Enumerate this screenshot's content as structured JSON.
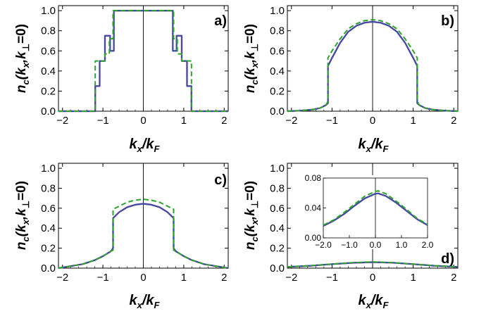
{
  "chart_data": [
    {
      "id": "a",
      "type": "line",
      "panel_label": "a)",
      "xlabel": {
        "main": "k",
        "sub1": "x",
        "mid": "/k",
        "sub2": "F"
      },
      "ylabel": {
        "main": "n",
        "sub1": "c",
        "mid1": "(k",
        "sub2": "x",
        "mid2": ",k",
        "sub3": "⊥",
        "end": "=0)"
      },
      "xlim": [
        -2.1,
        2.1
      ],
      "ylim": [
        0,
        1.05
      ],
      "xticks": [
        "−2",
        "−1",
        "0",
        "1",
        "2"
      ],
      "xtick_values": [
        -2,
        -1,
        0,
        1,
        2
      ],
      "yticks": [
        "0.0",
        "0.2",
        "0.4",
        "0.6",
        "0.8",
        "1.0"
      ],
      "ytick_values": [
        0,
        0.2,
        0.4,
        0.6,
        0.8,
        1.0
      ],
      "series": [
        {
          "color": "#cc1f5a",
          "dash": false,
          "x": [
            -2.1,
            -1.19,
            -1.19,
            -1.08,
            -1.08,
            -0.95,
            -0.95,
            -0.82,
            -0.82,
            -0.73,
            -0.73,
            0.73,
            0.73,
            0.82,
            0.82,
            0.95,
            0.95,
            1.08,
            1.08,
            1.19,
            1.19,
            2.1
          ],
          "y": [
            0,
            0,
            0.25,
            0.25,
            0.5,
            0.5,
            0.75,
            0.75,
            0.6,
            0.6,
            1.0,
            1.0,
            0.6,
            0.6,
            0.75,
            0.75,
            0.5,
            0.5,
            0.25,
            0.25,
            0,
            0
          ]
        },
        {
          "color": "#3f4ba8",
          "dash": false,
          "x": [
            -2.1,
            -1.19,
            -1.19,
            -1.08,
            -1.08,
            -0.95,
            -0.95,
            -0.82,
            -0.82,
            -0.73,
            -0.73,
            0.73,
            0.73,
            0.82,
            0.82,
            0.95,
            0.95,
            1.08,
            1.08,
            1.19,
            1.19,
            2.1
          ],
          "y": [
            0,
            0,
            0.25,
            0.25,
            0.5,
            0.5,
            0.75,
            0.75,
            0.6,
            0.6,
            1.0,
            1.0,
            0.6,
            0.6,
            0.75,
            0.75,
            0.5,
            0.5,
            0.25,
            0.25,
            0,
            0
          ]
        },
        {
          "color": "#2aa52a",
          "dash": true,
          "x": [
            -2.1,
            -1.19,
            -1.19,
            -0.95,
            -0.95,
            -0.84,
            -0.84,
            -0.75,
            -0.75,
            0.75,
            0.75,
            0.84,
            0.84,
            0.95,
            0.95,
            1.19,
            1.19,
            2.1
          ],
          "y": [
            0,
            0,
            0.5,
            0.5,
            0.57,
            0.57,
            0.72,
            0.72,
            1.0,
            1.0,
            0.72,
            0.72,
            0.57,
            0.57,
            0.5,
            0.5,
            0,
            0
          ]
        }
      ]
    },
    {
      "id": "b",
      "type": "line",
      "panel_label": "b)",
      "xlabel": {
        "main": "k",
        "sub1": "x",
        "mid": "/k",
        "sub2": "F"
      },
      "ylabel": {
        "main": "n",
        "sub1": "c",
        "mid1": "(k",
        "sub2": "x",
        "mid2": ",k",
        "sub3": "⊥",
        "end": "=0)"
      },
      "xlim": [
        -2.1,
        2.1
      ],
      "ylim": [
        0,
        1.05
      ],
      "xticks": [
        "−2",
        "−1",
        "0",
        "1",
        "2"
      ],
      "xtick_values": [
        -2,
        -1,
        0,
        1,
        2
      ],
      "yticks": [
        "0.0",
        "0.2",
        "0.4",
        "0.6",
        "0.8",
        "1.0"
      ],
      "ytick_values": [
        0,
        0.2,
        0.4,
        0.6,
        0.8,
        1.0
      ],
      "series": [
        {
          "color": "#cc1f5a",
          "dash": false,
          "x": [
            -2.1,
            -1.8,
            -1.5,
            -1.3,
            -1.15,
            -1.1,
            -1.1,
            -1.0,
            -0.8,
            -0.6,
            -0.4,
            -0.2,
            0,
            0.2,
            0.4,
            0.6,
            0.8,
            1.0,
            1.1,
            1.1,
            1.15,
            1.3,
            1.5,
            1.8,
            2.1
          ],
          "y": [
            0,
            0.005,
            0.015,
            0.03,
            0.06,
            0.08,
            0.45,
            0.53,
            0.68,
            0.79,
            0.85,
            0.88,
            0.89,
            0.88,
            0.85,
            0.79,
            0.68,
            0.53,
            0.45,
            0.08,
            0.06,
            0.03,
            0.015,
            0.005,
            0
          ]
        },
        {
          "color": "#3f4ba8",
          "dash": false,
          "x": [
            -2.1,
            -1.8,
            -1.5,
            -1.3,
            -1.15,
            -1.1,
            -1.1,
            -1.0,
            -0.8,
            -0.6,
            -0.4,
            -0.2,
            0,
            0.2,
            0.4,
            0.6,
            0.8,
            1.0,
            1.1,
            1.1,
            1.15,
            1.3,
            1.5,
            1.8,
            2.1
          ],
          "y": [
            0,
            0.005,
            0.015,
            0.03,
            0.06,
            0.08,
            0.45,
            0.53,
            0.68,
            0.79,
            0.85,
            0.88,
            0.89,
            0.88,
            0.85,
            0.79,
            0.68,
            0.53,
            0.45,
            0.08,
            0.06,
            0.03,
            0.015,
            0.005,
            0
          ]
        },
        {
          "color": "#2aa52a",
          "dash": true,
          "x": [
            -2.1,
            -1.8,
            -1.5,
            -1.3,
            -1.15,
            -1.1,
            -1.1,
            -1.0,
            -0.8,
            -0.6,
            -0.4,
            -0.2,
            0,
            0.2,
            0.4,
            0.6,
            0.8,
            1.0,
            1.1,
            1.1,
            1.15,
            1.3,
            1.5,
            1.8,
            2.1
          ],
          "y": [
            0,
            0.005,
            0.015,
            0.03,
            0.06,
            0.1,
            0.53,
            0.6,
            0.72,
            0.82,
            0.87,
            0.9,
            0.91,
            0.9,
            0.87,
            0.82,
            0.72,
            0.6,
            0.53,
            0.1,
            0.06,
            0.03,
            0.015,
            0.005,
            0
          ]
        }
      ]
    },
    {
      "id": "c",
      "type": "line",
      "panel_label": "c)",
      "xlabel": {
        "main": "k",
        "sub1": "x",
        "mid": "/k",
        "sub2": "F"
      },
      "ylabel": {
        "main": "n",
        "sub1": "c",
        "mid1": "(k",
        "sub2": "x",
        "mid2": ",k",
        "sub3": "⊥",
        "end": "=0)"
      },
      "xlim": [
        -2.1,
        2.1
      ],
      "ylim": [
        0,
        1.05
      ],
      "xticks": [
        "−2",
        "−1",
        "0",
        "1",
        "2"
      ],
      "xtick_values": [
        -2,
        -1,
        0,
        1,
        2
      ],
      "yticks": [
        "0.0",
        "0.2",
        "0.4",
        "0.6",
        "0.8",
        "1.0"
      ],
      "ytick_values": [
        0,
        0.2,
        0.4,
        0.6,
        0.8,
        1.0
      ],
      "series": [
        {
          "color": "#cc1f5a",
          "dash": false,
          "x": [
            -2.1,
            -1.8,
            -1.5,
            -1.2,
            -1.0,
            -0.8,
            -0.75,
            -0.75,
            -0.6,
            -0.4,
            -0.2,
            0,
            0.2,
            0.4,
            0.6,
            0.75,
            0.75,
            0.8,
            1.0,
            1.2,
            1.5,
            1.8,
            2.1
          ],
          "y": [
            0,
            0.02,
            0.04,
            0.08,
            0.12,
            0.17,
            0.2,
            0.5,
            0.56,
            0.61,
            0.635,
            0.645,
            0.635,
            0.61,
            0.56,
            0.5,
            0.2,
            0.17,
            0.12,
            0.08,
            0.04,
            0.02,
            0
          ]
        },
        {
          "color": "#3f4ba8",
          "dash": false,
          "x": [
            -2.1,
            -1.8,
            -1.5,
            -1.2,
            -1.0,
            -0.8,
            -0.75,
            -0.75,
            -0.6,
            -0.4,
            -0.2,
            0,
            0.2,
            0.4,
            0.6,
            0.75,
            0.75,
            0.8,
            1.0,
            1.2,
            1.5,
            1.8,
            2.1
          ],
          "y": [
            0,
            0.02,
            0.04,
            0.08,
            0.12,
            0.17,
            0.2,
            0.5,
            0.56,
            0.61,
            0.635,
            0.645,
            0.635,
            0.61,
            0.56,
            0.5,
            0.2,
            0.17,
            0.12,
            0.08,
            0.04,
            0.02,
            0
          ]
        },
        {
          "color": "#2aa52a",
          "dash": true,
          "x": [
            -2.1,
            -1.8,
            -1.5,
            -1.2,
            -1.0,
            -0.8,
            -0.75,
            -0.75,
            -0.6,
            -0.4,
            -0.2,
            0,
            0.2,
            0.4,
            0.6,
            0.75,
            0.75,
            0.8,
            1.0,
            1.2,
            1.5,
            1.8,
            2.1
          ],
          "y": [
            0,
            0.02,
            0.04,
            0.08,
            0.12,
            0.17,
            0.18,
            0.59,
            0.62,
            0.66,
            0.68,
            0.69,
            0.68,
            0.66,
            0.62,
            0.59,
            0.18,
            0.17,
            0.12,
            0.08,
            0.04,
            0.02,
            0
          ]
        }
      ]
    },
    {
      "id": "d",
      "type": "line",
      "panel_label": "d)",
      "xlabel": {
        "main": "k",
        "sub1": "x",
        "mid": "/k",
        "sub2": "F"
      },
      "ylabel": {
        "main": "n",
        "sub1": "c",
        "mid1": "(k",
        "sub2": "x",
        "mid2": ",k",
        "sub3": "⊥",
        "end": "=0)"
      },
      "xlim": [
        -2.1,
        2.1
      ],
      "ylim": [
        0,
        1.05
      ],
      "xticks": [
        "−2",
        "−1",
        "0",
        "1",
        "2"
      ],
      "xtick_values": [
        -2,
        -1,
        0,
        1,
        2
      ],
      "yticks": [
        "0.0",
        "0.2",
        "0.4",
        "0.6",
        "0.8",
        "1.0"
      ],
      "ytick_values": [
        0,
        0.2,
        0.4,
        0.6,
        0.8,
        1.0
      ],
      "series": [
        {
          "color": "#cc1f5a",
          "dash": false,
          "x": [
            -2.1,
            -1.5,
            -1.0,
            -0.5,
            0,
            0.5,
            1.0,
            1.5,
            2.1
          ],
          "y": [
            0.012,
            0.025,
            0.04,
            0.053,
            0.06,
            0.054,
            0.04,
            0.025,
            0.012
          ]
        },
        {
          "color": "#3f4ba8",
          "dash": false,
          "x": [
            -2.1,
            -1.5,
            -1.0,
            -0.5,
            0,
            0.5,
            1.0,
            1.5,
            2.1
          ],
          "y": [
            0.012,
            0.025,
            0.04,
            0.053,
            0.06,
            0.054,
            0.04,
            0.025,
            0.012
          ]
        },
        {
          "color": "#2aa52a",
          "dash": true,
          "x": [
            -2.1,
            -1.5,
            -1.0,
            -0.5,
            0,
            0.5,
            1.0,
            1.5,
            2.1
          ],
          "y": [
            0.012,
            0.026,
            0.041,
            0.055,
            0.063,
            0.056,
            0.041,
            0.026,
            0.012
          ]
        }
      ],
      "inset": {
        "xlim": [
          -2.0,
          2.0
        ],
        "ylim": [
          0,
          0.08
        ],
        "xticks": [
          "−2.0",
          "−1.0",
          "0.0",
          "1.0",
          "2.0"
        ],
        "xtick_values": [
          -2,
          -1,
          0,
          1,
          2
        ],
        "yticks": [
          "0.00",
          "0.04",
          "0.08"
        ],
        "ytick_values": [
          0,
          0.04,
          0.08
        ],
        "series": [
          {
            "color": "#cc1f5a",
            "dash": false,
            "x": [
              -2.0,
              -1.6,
              -1.2,
              -0.8,
              -0.4,
              0,
              0.1,
              0.4,
              0.8,
              1.2,
              1.6,
              2.0
            ],
            "y": [
              0.016,
              0.023,
              0.032,
              0.043,
              0.053,
              0.059,
              0.0595,
              0.056,
              0.047,
              0.036,
              0.025,
              0.017
            ]
          },
          {
            "color": "#3f4ba8",
            "dash": false,
            "x": [
              -2.0,
              -1.6,
              -1.2,
              -0.8,
              -0.4,
              0,
              0.1,
              0.4,
              0.8,
              1.2,
              1.6,
              2.0
            ],
            "y": [
              0.016,
              0.023,
              0.032,
              0.043,
              0.053,
              0.059,
              0.0595,
              0.056,
              0.047,
              0.036,
              0.025,
              0.017
            ]
          },
          {
            "color": "#2aa52a",
            "dash": true,
            "x": [
              -2.0,
              -1.6,
              -1.2,
              -0.8,
              -0.4,
              0,
              0.1,
              0.4,
              0.8,
              1.2,
              1.6,
              2.0
            ],
            "y": [
              0.017,
              0.024,
              0.034,
              0.045,
              0.056,
              0.062,
              0.063,
              0.059,
              0.049,
              0.038,
              0.026,
              0.018
            ]
          }
        ]
      }
    }
  ]
}
